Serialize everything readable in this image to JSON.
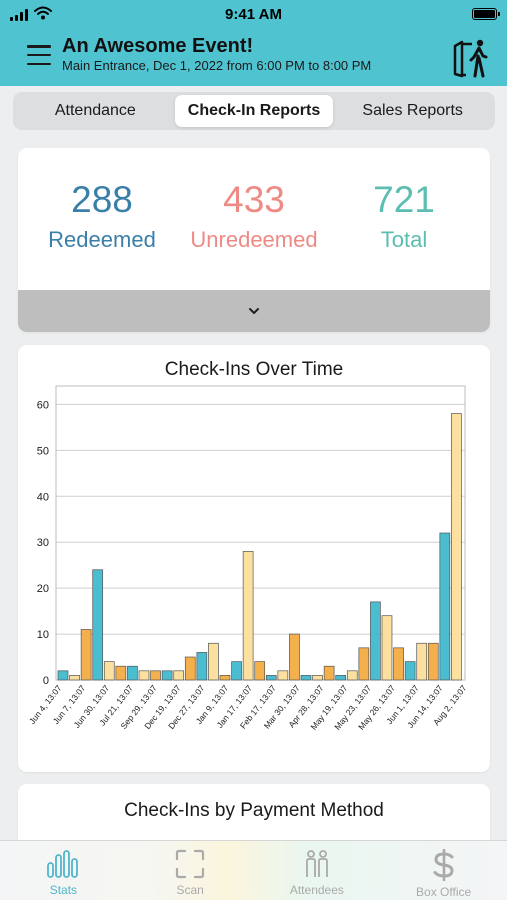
{
  "status_bar": {
    "time": "9:41 AM"
  },
  "header": {
    "title": "An Awesome Event!",
    "subtitle": "Main Entrance, Dec  1, 2022 from 6:00 PM to 8:00 PM",
    "bg_color": "#4fc3d0",
    "menu_icon": "hamburger-icon",
    "exit_icon": "exit-door-person-icon"
  },
  "tabs": [
    {
      "label": "Attendance",
      "active": false
    },
    {
      "label": "Check-In Reports",
      "active": true
    },
    {
      "label": "Sales Reports",
      "active": false
    }
  ],
  "summary": {
    "redeemed": {
      "value": "288",
      "label": "Redeemed",
      "color": "#3a7fa8"
    },
    "unredeemed": {
      "value": "433",
      "label": "Unredeemed",
      "color": "#ee8a84"
    },
    "total": {
      "value": "721",
      "label": "Total",
      "color": "#5bbeb0"
    },
    "expand_icon": "chevron-down-icon"
  },
  "chart_data": {
    "type": "bar",
    "title": "Check-Ins Over Time",
    "xlabel": "",
    "ylabel": "",
    "ylim": [
      0,
      64
    ],
    "yticks": [
      0,
      10,
      20,
      30,
      40,
      50,
      60
    ],
    "grid": true,
    "legend": "none",
    "tick_labels": [
      "Jun 4, 13:07",
      "Jun 7, 13:07",
      "Jun 30, 13:07",
      "Jul 21, 13:07",
      "Sep 29, 13:07",
      "Dec 19, 13:07",
      "Dec 27, 13:07",
      "Jan 9, 13:07",
      "Jan 17, 13:07",
      "Feb 17, 13:07",
      "Mar 30, 13:07",
      "Apr 28, 13:07",
      "May 19, 13:07",
      "May 23, 13:07",
      "May 26, 13:07",
      "Jun 1, 13:07",
      "Jun 14, 13:07",
      "Aug 2, 13:07"
    ],
    "series_colors": [
      "#4bbdd0",
      "#fbe0a0",
      "#f4b04c"
    ],
    "values": [
      2,
      1,
      11,
      24,
      4,
      3,
      3,
      2,
      2,
      2,
      2,
      5,
      6,
      8,
      1,
      4,
      28,
      4,
      1,
      2,
      10,
      1,
      1,
      3,
      1,
      2,
      7,
      17,
      14,
      7,
      4,
      8,
      8,
      32,
      58
    ],
    "color_index": [
      0,
      1,
      2,
      0,
      1,
      2,
      0,
      1,
      2,
      0,
      1,
      2,
      0,
      1,
      2,
      0,
      1,
      2,
      0,
      1,
      2,
      0,
      1,
      2,
      0,
      1,
      2,
      0,
      1,
      2,
      0,
      1,
      2,
      0,
      1
    ]
  },
  "payment_chart": {
    "title": "Check-Ins by Payment Method"
  },
  "tabbar": {
    "items": [
      {
        "label": "Stats",
        "icon": "bar-chart-icon",
        "active": true
      },
      {
        "label": "Scan",
        "icon": "scan-frame-icon",
        "active": false
      },
      {
        "label": "Attendees",
        "icon": "people-icon",
        "active": false
      },
      {
        "label": "Box Office",
        "icon": "dollar-icon",
        "active": false
      }
    ]
  }
}
